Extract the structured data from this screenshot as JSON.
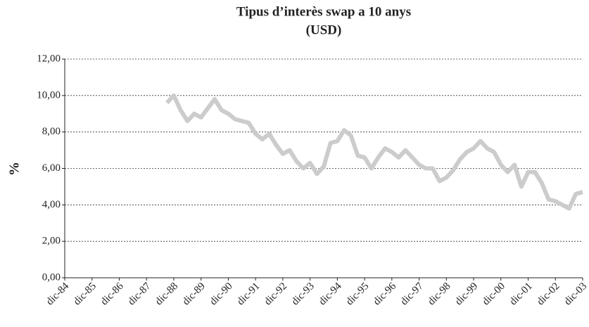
{
  "chart_data": {
    "type": "line",
    "title": "Tipus d’interès swap a 10 anys",
    "subtitle": "(USD)",
    "y_label": "%",
    "categories": [
      "dic-84",
      null,
      null,
      null,
      "dic-85",
      null,
      null,
      null,
      "dic-86",
      null,
      null,
      null,
      "dic-87",
      null,
      null,
      null,
      "dic-88",
      null,
      null,
      null,
      "dic-89",
      null,
      null,
      null,
      "dic-90",
      null,
      null,
      null,
      "dic-91",
      null,
      null,
      null,
      "dic-92",
      null,
      null,
      null,
      "dic-93",
      null,
      null,
      null,
      "dic-94",
      null,
      null,
      null,
      "dic-95",
      null,
      null,
      null,
      "dic-96",
      null,
      null,
      null,
      "dic-97",
      null,
      null,
      null,
      "dic-98",
      null,
      null,
      null,
      "dic-99",
      null,
      null,
      null,
      "dic-00",
      null,
      null,
      null,
      "dic-01",
      null,
      null,
      null,
      "dic-02",
      null,
      null,
      null,
      "dic-03"
    ],
    "values": [
      null,
      null,
      null,
      null,
      null,
      null,
      null,
      null,
      null,
      null,
      null,
      null,
      null,
      null,
      null,
      9.6,
      10.0,
      9.2,
      8.6,
      9.0,
      8.8,
      9.3,
      9.8,
      9.2,
      9.0,
      8.7,
      8.6,
      8.5,
      7.9,
      7.6,
      7.9,
      7.3,
      6.8,
      7.0,
      6.4,
      6.0,
      6.3,
      5.7,
      6.1,
      7.4,
      7.5,
      8.1,
      7.8,
      6.7,
      6.6,
      6.0,
      6.6,
      7.1,
      6.9,
      6.6,
      7.0,
      6.6,
      6.2,
      6.0,
      6.0,
      5.3,
      5.5,
      5.9,
      6.5,
      6.9,
      7.1,
      7.5,
      7.1,
      6.9,
      6.2,
      5.8,
      6.2,
      5.0,
      5.8,
      5.8,
      5.2,
      4.3,
      4.2,
      4.0,
      3.8,
      4.6,
      4.7
    ],
    "color": "#cccccc",
    "ylim": [
      0,
      12
    ],
    "yticks": [
      {
        "value": 0,
        "label": "0,00"
      },
      {
        "value": 2,
        "label": "2,00"
      },
      {
        "value": 4,
        "label": "4,00"
      },
      {
        "value": 6,
        "label": "6,00"
      },
      {
        "value": 8,
        "label": "8,00"
      },
      {
        "value": 10,
        "label": "10,00"
      },
      {
        "value": 12,
        "label": "12,00"
      }
    ],
    "grid": true
  }
}
